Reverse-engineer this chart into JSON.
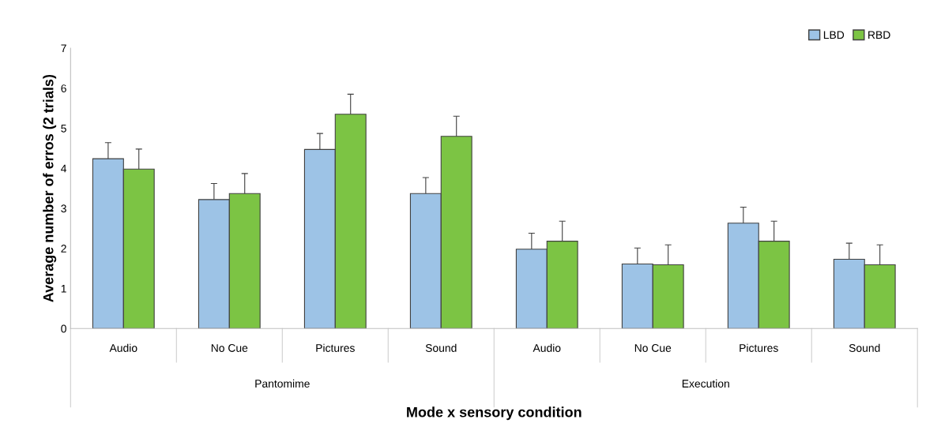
{
  "chart_data": {
    "type": "bar",
    "xlabel": "Mode x sensory condition",
    "ylabel": "Average number of erros (2 trials)",
    "categories": [
      "Audio",
      "No Cue",
      "Pictures",
      "Sound",
      "Audio",
      "No Cue",
      "Pictures",
      "Sound"
    ],
    "annotations": [
      "Pantomime",
      "Execution"
    ],
    "series": [
      {
        "name": "LBD",
        "color": "#9dc3e6",
        "values": [
          4.24,
          3.22,
          4.47,
          3.37,
          1.98,
          1.61,
          2.63,
          1.73
        ],
        "errors": [
          [
            4.24,
            4.64
          ],
          [
            3.22,
            3.62
          ],
          [
            4.47,
            4.87
          ],
          [
            3.37,
            3.77
          ],
          [
            1.98,
            2.38
          ],
          [
            1.61,
            2.01
          ],
          [
            2.63,
            3.03
          ],
          [
            1.73,
            2.13
          ]
        ]
      },
      {
        "name": "RBD",
        "color": "#7cc444",
        "values": [
          3.98,
          3.37,
          5.35,
          4.8,
          2.18,
          1.59,
          2.18,
          1.59
        ],
        "errors": [
          [
            3.98,
            4.48
          ],
          [
            3.37,
            3.87
          ],
          [
            5.35,
            5.85
          ],
          [
            4.8,
            5.3
          ],
          [
            2.18,
            2.68
          ],
          [
            1.59,
            2.09
          ],
          [
            2.18,
            2.68
          ],
          [
            1.59,
            2.09
          ]
        ]
      }
    ],
    "ylim": [
      0,
      7
    ],
    "yticks": [
      0,
      1,
      2,
      3,
      4,
      5,
      6,
      7
    ],
    "grid": false,
    "legend": "top right"
  }
}
